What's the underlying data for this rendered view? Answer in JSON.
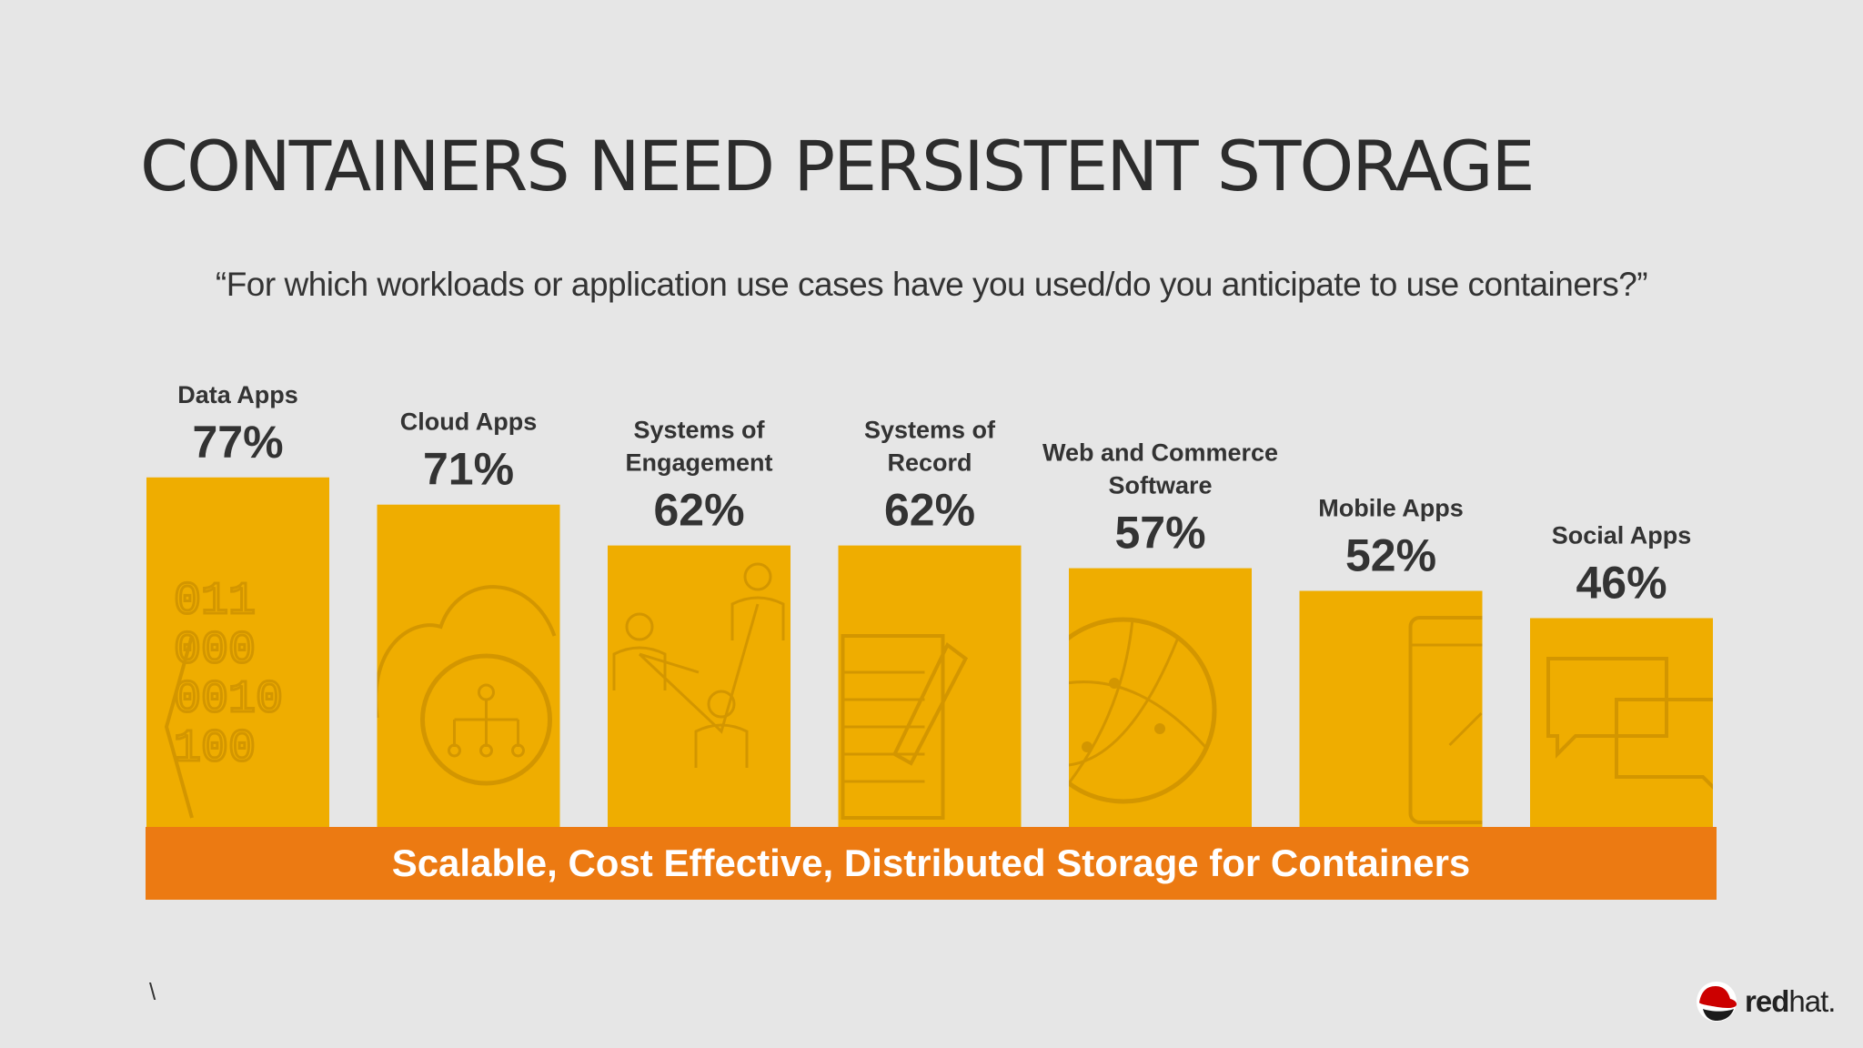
{
  "slide": {
    "title": "CONTAINERS NEED PERSISTENT STORAGE",
    "subtitle": "“For which workloads or application use cases have you used/do you anticipate to use containers?”",
    "banner": "Scalable, Cost Effective, Distributed Storage for Containers",
    "stray_mark": "\\",
    "logo": {
      "bold": "red",
      "light": "hat."
    }
  },
  "colors": {
    "bar": "#efad00",
    "bar_icon": "#d39600",
    "banner": "#ec7a12",
    "background": "#e6e6e6"
  },
  "chart_data": {
    "type": "bar",
    "categories": [
      [
        "Data Apps"
      ],
      [
        "Cloud Apps"
      ],
      [
        "Systems of",
        "Engagement"
      ],
      [
        "Systems of",
        "Record"
      ],
      [
        "Web and Commerce",
        "Software"
      ],
      [
        "Mobile Apps"
      ],
      [
        "Social Apps"
      ]
    ],
    "values": [
      77,
      71,
      62,
      62,
      57,
      52,
      46
    ],
    "value_labels": [
      "77%",
      "71%",
      "62%",
      "62%",
      "57%",
      "52%",
      "46%"
    ],
    "icons": [
      "binary-code-icon",
      "cloud-network-icon",
      "people-network-icon",
      "notepad-pencil-icon",
      "globe-icon",
      "mobile-phone-icon",
      "chat-bubbles-icon"
    ],
    "unit": "%",
    "title": "",
    "xlabel": "",
    "ylabel": "",
    "grid": false,
    "legend": "none"
  }
}
